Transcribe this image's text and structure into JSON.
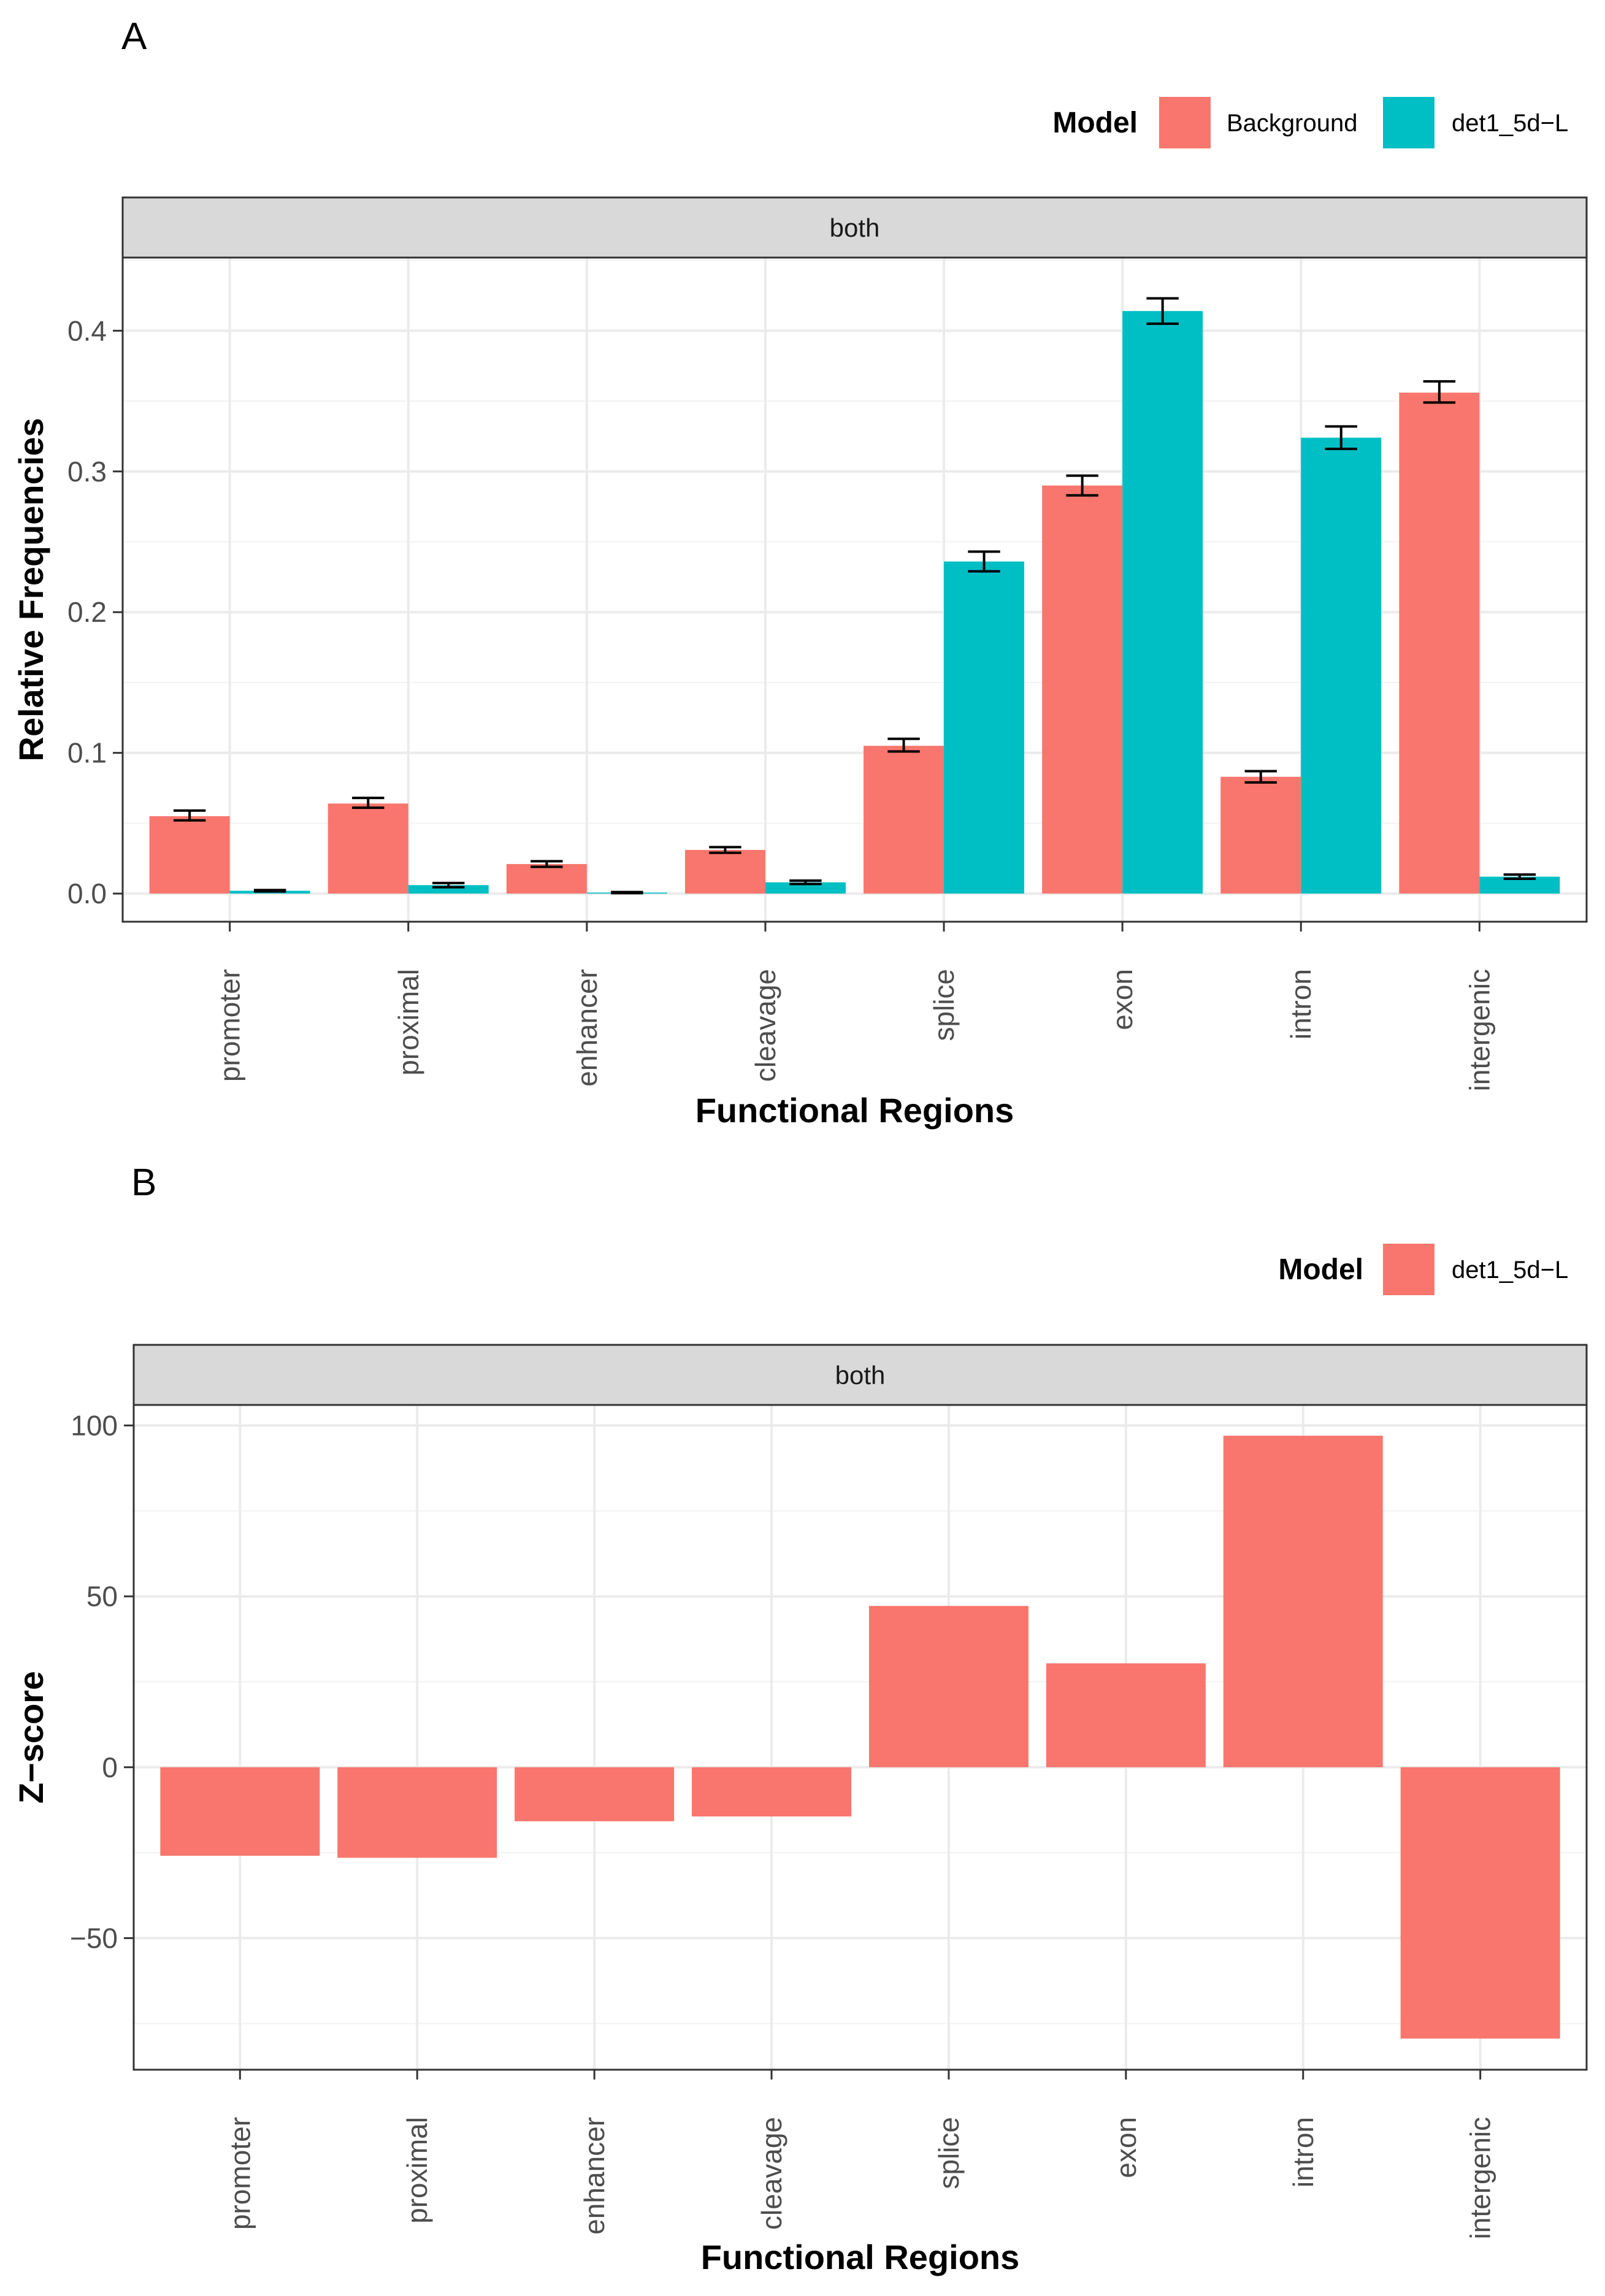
{
  "colors": {
    "background_model": "#F8766D",
    "det_model": "#00BFC4"
  },
  "chart_data": [
    {
      "panel": "A",
      "type": "bar",
      "facet": "both",
      "title": "",
      "xlabel": "Functional Regions",
      "ylabel": "Relative Frequencies",
      "legend": {
        "title": "Model",
        "position": "top-right",
        "entries": [
          {
            "label": "Background",
            "color": "#F8766D"
          },
          {
            "label": "det1_5d−L",
            "color": "#00BFC4"
          }
        ]
      },
      "categories": [
        "promoter",
        "proximal",
        "enhancer",
        "cleavage",
        "splice",
        "exon",
        "intron",
        "intergenic"
      ],
      "series": [
        {
          "name": "Background",
          "color": "#F8766D",
          "values": [
            0.055,
            0.064,
            0.021,
            0.031,
            0.105,
            0.29,
            0.083,
            0.356
          ],
          "err_low": [
            0.052,
            0.061,
            0.019,
            0.029,
            0.101,
            0.283,
            0.079,
            0.349
          ],
          "err_high": [
            0.059,
            0.068,
            0.023,
            0.033,
            0.11,
            0.297,
            0.087,
            0.364
          ]
        },
        {
          "name": "det1_5d−L",
          "color": "#00BFC4",
          "values": [
            0.002,
            0.006,
            0.0007,
            0.008,
            0.236,
            0.414,
            0.324,
            0.012
          ],
          "err_low": [
            0.0015,
            0.0045,
            0.0003,
            0.0068,
            0.229,
            0.405,
            0.316,
            0.0105
          ],
          "err_high": [
            0.0025,
            0.0075,
            0.0011,
            0.0092,
            0.243,
            0.423,
            0.332,
            0.0135
          ]
        }
      ],
      "ylim": [
        -0.02,
        0.452
      ],
      "yticks": [
        0.0,
        0.1,
        0.2,
        0.3,
        0.4
      ],
      "ytick_labels": [
        "0.0",
        "0.1",
        "0.2",
        "0.3",
        "0.4"
      ],
      "grid": true
    },
    {
      "panel": "B",
      "type": "bar",
      "facet": "both",
      "title": "",
      "xlabel": "Functional Regions",
      "ylabel": "Z−score",
      "legend": {
        "title": "Model",
        "position": "top-right",
        "entries": [
          {
            "label": "det1_5d−L",
            "color": "#F8766D"
          }
        ]
      },
      "categories": [
        "promoter",
        "proximal",
        "enhancer",
        "cleavage",
        "splice",
        "exon",
        "intron",
        "intergenic"
      ],
      "series": [
        {
          "name": "det1_5d−L",
          "color": "#F8766D",
          "values": [
            -25.9,
            -26.5,
            -15.8,
            -14.4,
            47.2,
            30.4,
            97.0,
            -79.4
          ]
        }
      ],
      "ylim": [
        -88.5,
        106.0
      ],
      "yticks": [
        -50,
        0,
        50,
        100
      ],
      "ytick_labels": [
        "−50",
        "0",
        "50",
        "100"
      ],
      "grid": true
    }
  ]
}
